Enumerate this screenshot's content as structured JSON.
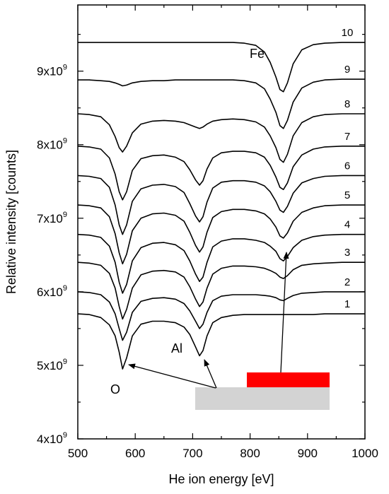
{
  "chart_data": {
    "type": "line",
    "title": "",
    "xlabel": "He ion energy [eV]",
    "ylabel": "Relative intensity [counts]",
    "xlim": [
      500,
      1000
    ],
    "ylim": [
      4000000000,
      9900000000
    ],
    "x_ticks": [
      500,
      600,
      700,
      800,
      900,
      1000
    ],
    "x_tick_labels": [
      "500",
      "600",
      "700",
      "800",
      "900",
      "1000"
    ],
    "y_ticks": [
      4000000000,
      5000000000,
      6000000000,
      7000000000,
      8000000000,
      9000000000
    ],
    "y_tick_mantissa": [
      "4x10",
      "5x10",
      "6x10",
      "7x10",
      "8x10",
      "9x10"
    ],
    "y_tick_exponent": "9",
    "grid": false,
    "legend": "none",
    "x": [
      500,
      520,
      540,
      555,
      565,
      572,
      578,
      585,
      595,
      610,
      630,
      650,
      670,
      685,
      695,
      705,
      712,
      718,
      725,
      735,
      750,
      770,
      790,
      810,
      825,
      835,
      845,
      852,
      858,
      865,
      875,
      890,
      910,
      930,
      960,
      1000
    ],
    "series": [
      {
        "name": "1",
        "values": [
          5700000000,
          5690000000,
          5650000000,
          5550000000,
          5400000000,
          5180000000,
          4950000000,
          5100000000,
          5400000000,
          5560000000,
          5600000000,
          5600000000,
          5580000000,
          5520000000,
          5420000000,
          5250000000,
          5130000000,
          5200000000,
          5400000000,
          5580000000,
          5650000000,
          5680000000,
          5690000000,
          5690000000,
          5690000000,
          5690000000,
          5690000000,
          5690000000,
          5690000000,
          5690000000,
          5690000000,
          5690000000,
          5690000000,
          5700000000,
          5700000000,
          5700000000
        ]
      },
      {
        "name": "2",
        "values": [
          6000000000,
          5990000000,
          5960000000,
          5860000000,
          5700000000,
          5500000000,
          5340000000,
          5450000000,
          5720000000,
          5870000000,
          5910000000,
          5920000000,
          5900000000,
          5840000000,
          5740000000,
          5600000000,
          5500000000,
          5560000000,
          5720000000,
          5880000000,
          5940000000,
          5960000000,
          5960000000,
          5960000000,
          5950000000,
          5940000000,
          5920000000,
          5890000000,
          5880000000,
          5910000000,
          5950000000,
          5980000000,
          5990000000,
          6000000000,
          6000000000,
          6000000000
        ]
      },
      {
        "name": "3",
        "values": [
          6400000000,
          6390000000,
          6360000000,
          6250000000,
          6050000000,
          5800000000,
          5630000000,
          5760000000,
          6050000000,
          6230000000,
          6280000000,
          6290000000,
          6270000000,
          6200000000,
          6070000000,
          5900000000,
          5800000000,
          5860000000,
          6050000000,
          6240000000,
          6320000000,
          6350000000,
          6350000000,
          6340000000,
          6320000000,
          6290000000,
          6250000000,
          6200000000,
          6180000000,
          6220000000,
          6300000000,
          6360000000,
          6380000000,
          6390000000,
          6400000000,
          6400000000
        ]
      },
      {
        "name": "4",
        "values": [
          6780000000,
          6770000000,
          6740000000,
          6620000000,
          6400000000,
          6130000000,
          5980000000,
          6100000000,
          6420000000,
          6600000000,
          6660000000,
          6670000000,
          6640000000,
          6560000000,
          6420000000,
          6240000000,
          6140000000,
          6200000000,
          6400000000,
          6610000000,
          6690000000,
          6720000000,
          6720000000,
          6700000000,
          6670000000,
          6620000000,
          6550000000,
          6450000000,
          6420000000,
          6480000000,
          6600000000,
          6700000000,
          6750000000,
          6770000000,
          6780000000,
          6780000000
        ]
      },
      {
        "name": "5",
        "values": [
          7180000000,
          7170000000,
          7140000000,
          7020000000,
          6790000000,
          6530000000,
          6380000000,
          6510000000,
          6830000000,
          7000000000,
          7060000000,
          7070000000,
          7040000000,
          6960000000,
          6810000000,
          6630000000,
          6540000000,
          6610000000,
          6810000000,
          7010000000,
          7090000000,
          7120000000,
          7120000000,
          7100000000,
          7060000000,
          6990000000,
          6880000000,
          6760000000,
          6730000000,
          6800000000,
          6960000000,
          7080000000,
          7140000000,
          7170000000,
          7180000000,
          7180000000
        ]
      },
      {
        "name": "6",
        "values": [
          7580000000,
          7570000000,
          7540000000,
          7420000000,
          7180000000,
          6910000000,
          6780000000,
          6910000000,
          7230000000,
          7400000000,
          7450000000,
          7460000000,
          7430000000,
          7350000000,
          7200000000,
          7030000000,
          6950000000,
          7020000000,
          7220000000,
          7410000000,
          7490000000,
          7510000000,
          7510000000,
          7490000000,
          7440000000,
          7360000000,
          7230000000,
          7110000000,
          7080000000,
          7160000000,
          7340000000,
          7480000000,
          7540000000,
          7570000000,
          7580000000,
          7580000000
        ]
      },
      {
        "name": "7",
        "values": [
          7980000000,
          7970000000,
          7940000000,
          7820000000,
          7600000000,
          7360000000,
          7250000000,
          7360000000,
          7650000000,
          7810000000,
          7850000000,
          7860000000,
          7830000000,
          7770000000,
          7660000000,
          7520000000,
          7450000000,
          7510000000,
          7670000000,
          7820000000,
          7890000000,
          7910000000,
          7910000000,
          7890000000,
          7830000000,
          7720000000,
          7560000000,
          7420000000,
          7390000000,
          7480000000,
          7700000000,
          7860000000,
          7940000000,
          7970000000,
          7980000000,
          7980000000
        ]
      },
      {
        "name": "8",
        "values": [
          8420000000,
          8410000000,
          8380000000,
          8270000000,
          8110000000,
          7960000000,
          7900000000,
          7980000000,
          8160000000,
          8280000000,
          8320000000,
          8330000000,
          8320000000,
          8300000000,
          8270000000,
          8240000000,
          8220000000,
          8240000000,
          8280000000,
          8320000000,
          8340000000,
          8350000000,
          8340000000,
          8310000000,
          8240000000,
          8120000000,
          7960000000,
          7800000000,
          7760000000,
          7870000000,
          8120000000,
          8300000000,
          8380000000,
          8410000000,
          8420000000,
          8420000000
        ]
      },
      {
        "name": "9",
        "values": [
          8880000000,
          8880000000,
          8870000000,
          8860000000,
          8840000000,
          8820000000,
          8800000000,
          8810000000,
          8840000000,
          8860000000,
          8870000000,
          8870000000,
          8880000000,
          8880000000,
          8880000000,
          8880000000,
          8880000000,
          8880000000,
          8880000000,
          8880000000,
          8880000000,
          8880000000,
          8870000000,
          8840000000,
          8760000000,
          8620000000,
          8440000000,
          8260000000,
          8220000000,
          8330000000,
          8580000000,
          8770000000,
          8850000000,
          8880000000,
          8890000000,
          8890000000
        ]
      },
      {
        "name": "10",
        "values": [
          9390000000,
          9390000000,
          9390000000,
          9390000000,
          9390000000,
          9390000000,
          9390000000,
          9390000000,
          9390000000,
          9390000000,
          9390000000,
          9390000000,
          9390000000,
          9390000000,
          9390000000,
          9390000000,
          9390000000,
          9390000000,
          9390000000,
          9390000000,
          9390000000,
          9390000000,
          9380000000,
          9350000000,
          9260000000,
          9120000000,
          8920000000,
          8750000000,
          8720000000,
          8840000000,
          9100000000,
          9290000000,
          9360000000,
          9380000000,
          9390000000,
          9390000000
        ]
      }
    ],
    "annotations": [
      "O",
      "Al",
      "Fe"
    ],
    "colors": {
      "line": "#000000",
      "substrate": "#d3d3d3",
      "fe_layer": "#ff0000"
    }
  }
}
